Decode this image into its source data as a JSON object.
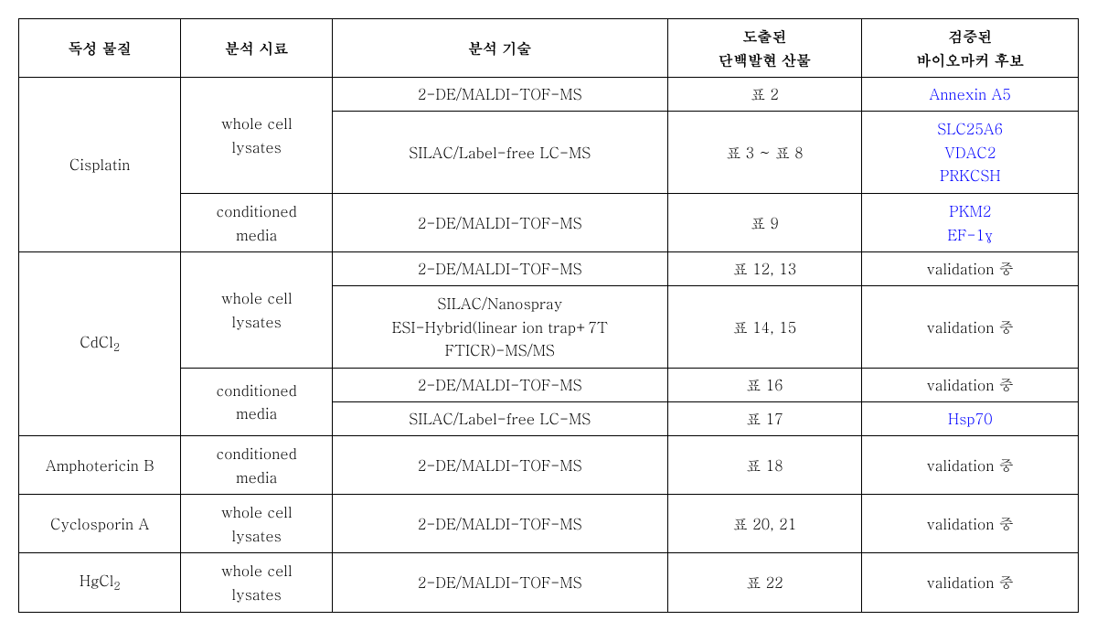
{
  "headers": {
    "col1": "독성 물질",
    "col2": "분석 시료",
    "col3": "분석 기술",
    "col4_line1": "도출된",
    "col4_line2": "단백발현 산물",
    "col5_line1": "검증된",
    "col5_line2": "바이오마커 후보"
  },
  "substances": {
    "cisplatin": "Cisplatin",
    "cdcl2_pre": "CdCl",
    "cdcl2_sub": "2",
    "amphotericin": "Amphotericin B",
    "cyclosporin": "Cyclosporin A",
    "hgcl2_pre": "HgCl",
    "hgcl2_sub": "2"
  },
  "samples": {
    "whole_cell_l1": "whole cell",
    "whole_cell_l2": "lysates",
    "cond_media_l1": "conditioned",
    "cond_media_l2": "media"
  },
  "techniques": {
    "de_maldi": "2-DE/MALDI-TOF-MS",
    "silac_label_free": "SILAC/Label-free LC-MS",
    "silac_nano_l1": "SILAC/Nanospray",
    "silac_nano_l2": "ESI-Hybrid(linear ion trap+7T",
    "silac_nano_l3": "FTICR)-MS/MS"
  },
  "products": {
    "p2": "표 2",
    "p3_8": "표 3 ~ 표 8",
    "p9": "표 9",
    "p12_13": "표 12, 13",
    "p14_15": "표 14, 15",
    "p16": "표 16",
    "p17": "표 17",
    "p18": "표 18",
    "p20_21": "표 20, 21",
    "p22": "표 22"
  },
  "biomarkers": {
    "annexin": "Annexin A5",
    "slc25a6": "SLC25A6",
    "vdac2": "VDAC2",
    "prkcsh": "PRKCSH",
    "pkm2": "PKM2",
    "ef1y": "EF-1γ",
    "hsp70": "Hsp70",
    "validation": "validation 중"
  }
}
